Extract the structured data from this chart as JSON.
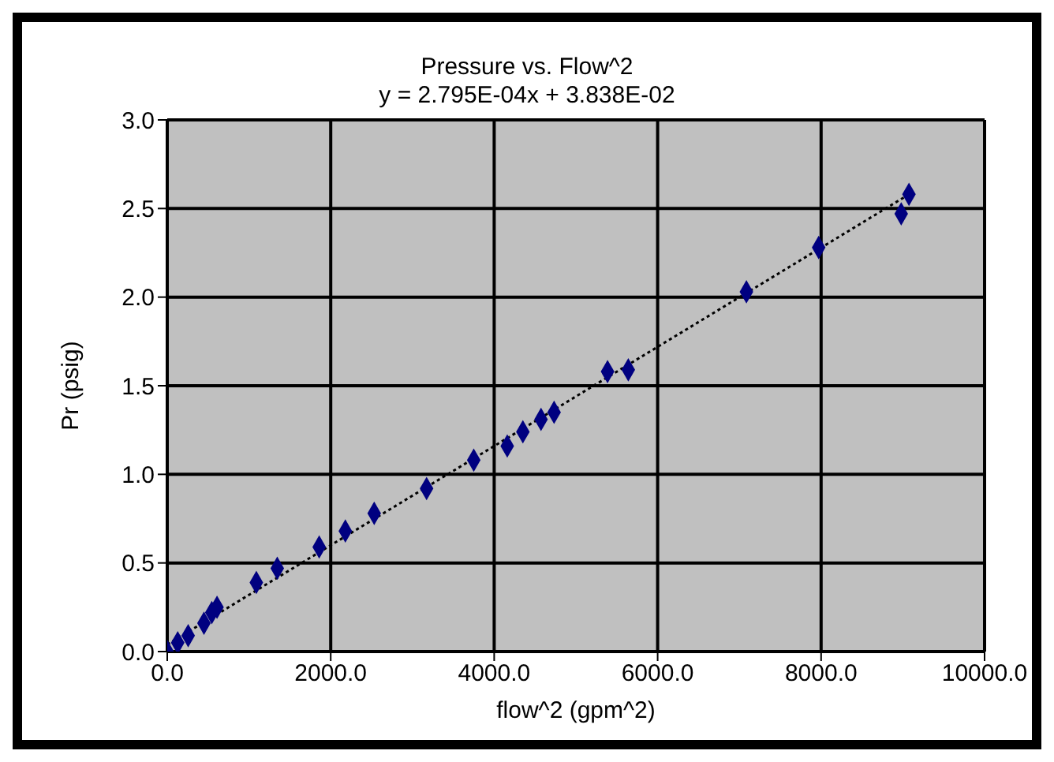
{
  "chart_data": {
    "type": "scatter",
    "title": "Pressure vs. Flow^2",
    "subtitle": "y = 2.795E-04x + 3.838E-02",
    "xlabel": "flow^2 (gpm^2)",
    "ylabel": "Pr (psig)",
    "xlim": [
      0,
      10000
    ],
    "xticks": [
      {
        "value": 0,
        "label": "0.0"
      },
      {
        "value": 2000,
        "label": "2000.0"
      },
      {
        "value": 4000,
        "label": "4000.0"
      },
      {
        "value": 6000,
        "label": "6000.0"
      },
      {
        "value": 8000,
        "label": "8000.0"
      },
      {
        "value": 10000,
        "label": "10000.0"
      }
    ],
    "ylim": [
      0,
      3
    ],
    "yticks": [
      {
        "value": 0,
        "label": "0.0"
      },
      {
        "value": 0.5,
        "label": "0.5"
      },
      {
        "value": 1,
        "label": "1.0"
      },
      {
        "value": 1.5,
        "label": "1.5"
      },
      {
        "value": 2,
        "label": "2.0"
      },
      {
        "value": 2.5,
        "label": "2.5"
      },
      {
        "value": 3,
        "label": "3.0"
      }
    ],
    "grid": true,
    "marker": "diamond",
    "series": [
      {
        "color": "#000080",
        "x": [
          0,
          128,
          256,
          449,
          545,
          609,
          1090,
          1346,
          1859,
          2179,
          2532,
          3173,
          3750,
          4160,
          4351,
          4573,
          4733,
          5387,
          5641,
          7086,
          7970,
          8980,
          9075
        ],
        "values": [
          0,
          0.05,
          0.09,
          0.16,
          0.22,
          0.25,
          0.39,
          0.47,
          0.59,
          0.68,
          0.78,
          0.92,
          1.08,
          1.16,
          1.24,
          1.31,
          1.35,
          1.58,
          1.59,
          2.03,
          2.28,
          2.47,
          2.58
        ]
      },
      {
        "type": "line",
        "color": "#000000",
        "line_style": "dotted",
        "marker": "none",
        "x": [
          0,
          9075
        ],
        "values": [
          0.04,
          2.58
        ]
      }
    ]
  }
}
